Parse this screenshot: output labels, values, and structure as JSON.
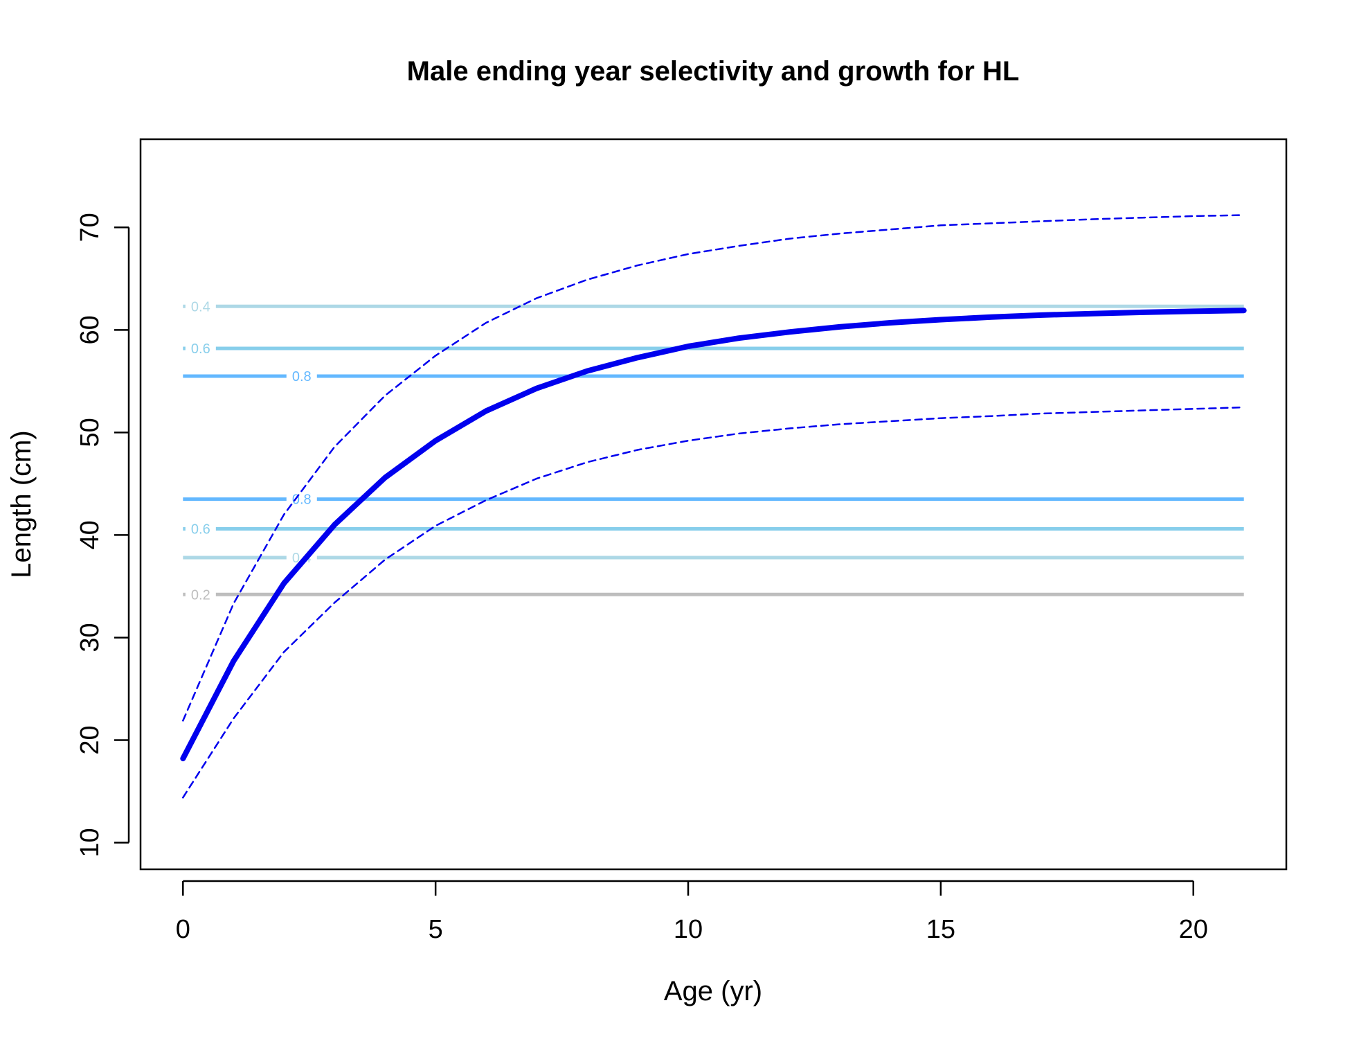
{
  "chart_data": {
    "type": "line",
    "title": "Male ending year selectivity and growth for HL",
    "xlabel": "Age (yr)",
    "ylabel": "Length (cm)",
    "xlim": [
      -0.84,
      21.84
    ],
    "ylim": [
      7.4,
      78.6
    ],
    "xticks": [
      0,
      5,
      10,
      15,
      20
    ],
    "yticks": [
      10,
      20,
      30,
      40,
      50,
      60,
      70
    ],
    "grid": false,
    "legend": "none",
    "growth_ages": [
      0,
      1,
      2,
      3,
      4,
      5,
      6,
      7,
      8,
      9,
      10,
      11,
      12,
      13,
      14,
      15,
      16,
      17,
      18,
      19,
      20,
      21
    ],
    "series": [
      {
        "style": "mean",
        "color": "#0000ee",
        "values": [
          18.2,
          27.7,
          35.3,
          41.0,
          45.6,
          49.2,
          52.1,
          54.3,
          56.0,
          57.3,
          58.4,
          59.2,
          59.8,
          60.3,
          60.7,
          61.0,
          61.25,
          61.45,
          61.6,
          61.72,
          61.82,
          61.9
        ]
      },
      {
        "style": "upper",
        "color": "#0000ee",
        "values": [
          21.9,
          33.3,
          42.0,
          48.6,
          53.6,
          57.5,
          60.7,
          63.1,
          64.9,
          66.3,
          67.4,
          68.2,
          68.9,
          69.4,
          69.8,
          70.2,
          70.4,
          70.6,
          70.8,
          70.95,
          71.1,
          71.2
        ]
      },
      {
        "style": "lower",
        "color": "#0000ee",
        "values": [
          14.4,
          22.1,
          28.6,
          33.4,
          37.6,
          40.9,
          43.4,
          45.5,
          47.1,
          48.3,
          49.2,
          49.9,
          50.4,
          50.8,
          51.1,
          51.4,
          51.6,
          51.85,
          52.0,
          52.15,
          52.3,
          52.45
        ]
      }
    ],
    "contours": [
      {
        "level": "0.4",
        "length": 62.3,
        "color": "#add8e6",
        "label_age": 0.35
      },
      {
        "level": "0.6",
        "length": 58.2,
        "color": "#87ceeb",
        "label_age": 0.35
      },
      {
        "level": "0.8",
        "length": 55.5,
        "color": "#63b8ff",
        "label_age": 2.35
      },
      {
        "level": "0.8",
        "length": 43.5,
        "color": "#63b8ff",
        "label_age": 2.35
      },
      {
        "level": "0.6",
        "length": 40.6,
        "color": "#87ceeb",
        "label_age": 0.35
      },
      {
        "level": "0.4",
        "length": 37.8,
        "color": "#add8e6",
        "label_age": 2.35
      },
      {
        "level": "0.2",
        "length": 34.2,
        "color": "#bebebe",
        "label_age": 0.35
      }
    ]
  }
}
